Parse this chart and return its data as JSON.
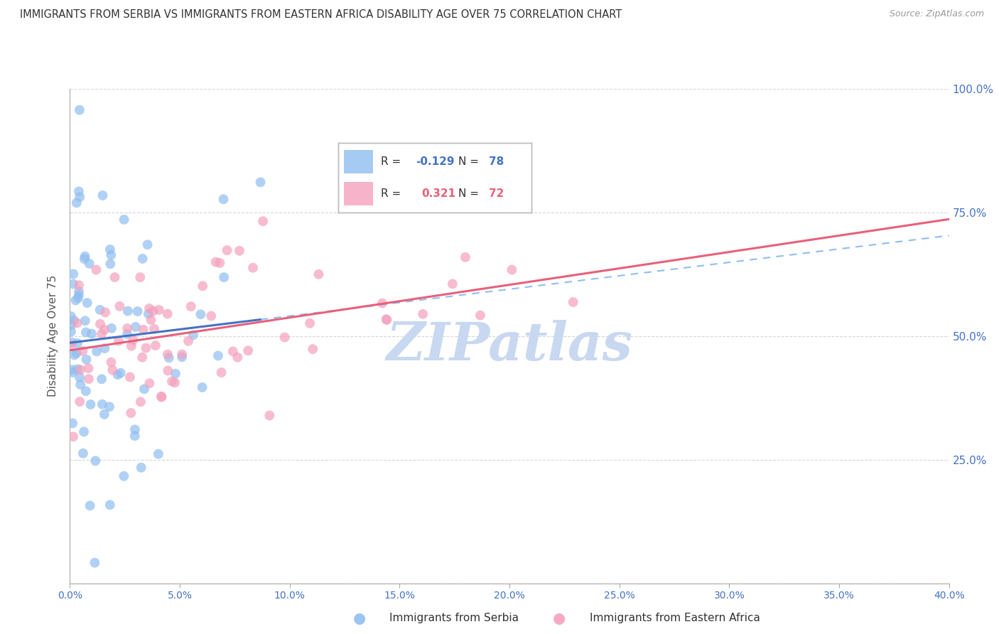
{
  "title": "IMMIGRANTS FROM SERBIA VS IMMIGRANTS FROM EASTERN AFRICA DISABILITY AGE OVER 75 CORRELATION CHART",
  "source": "Source: ZipAtlas.com",
  "ylabel": "Disability Age Over 75",
  "serbia_color": "#90BEF0",
  "eastern_africa_color": "#F4A0BC",
  "serbia_line_color": "#4472C4",
  "eastern_africa_line_color": "#E8607A",
  "serbia_label": "Immigrants from Serbia",
  "eastern_africa_label": "Immigrants from Eastern Africa",
  "serbia_R": -0.129,
  "serbia_N": 78,
  "eastern_africa_R": 0.321,
  "eastern_africa_N": 72,
  "legend_R_color": "#4472C4",
  "legend_R2_color": "#E8607A",
  "xmin": 0.0,
  "xmax": 40.0,
  "ymin": 0.0,
  "ymax": 100.0,
  "background_color": "#FFFFFF",
  "grid_color": "#CCCCCC",
  "title_color": "#333333",
  "axis_label_color": "#4472C4",
  "watermark_text": "ZIPatlas",
  "watermark_color": "#C8D8F0",
  "serbia_seed": 42,
  "ea_seed": 7,
  "serbia_x_scale": 2.0,
  "serbia_y_center": 50.0,
  "serbia_y_spread": 18.0,
  "ea_x_scale": 6.0,
  "ea_y_center": 50.0,
  "ea_y_spread": 10.0
}
